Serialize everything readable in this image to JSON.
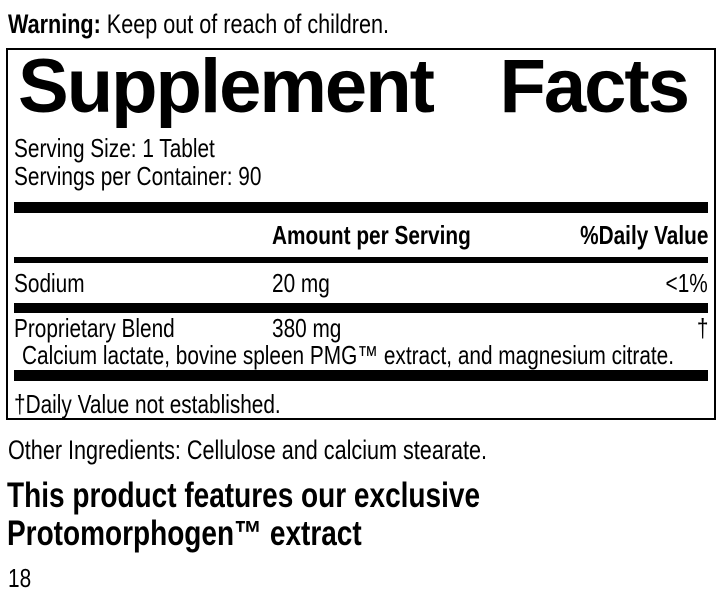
{
  "colors": {
    "text": "#000000",
    "background": "#ffffff",
    "divider": "#000000"
  },
  "warning": {
    "label": "Warning:",
    "text": "Keep out of reach of children."
  },
  "supplement_facts": {
    "title_left": "Supplement",
    "title_right": "Facts",
    "serving_size": "Serving Size: 1 Tablet",
    "servings_per_container": "Servings per Container: 90",
    "header": {
      "amount": "Amount per Serving",
      "daily_value": "%Daily Value"
    },
    "rows": [
      {
        "name": "Sodium",
        "amount": "20 mg",
        "daily_value": "<1%"
      },
      {
        "name": "Proprietary Blend",
        "amount": "380 mg",
        "daily_value": "†",
        "description": "Calcium lactate, bovine spleen PMG™ extract, and magnesium citrate."
      }
    ],
    "footnote": "†Daily Value not established."
  },
  "other_ingredients": "Other Ingredients: Cellulose and calcium stearate.",
  "feature_heading": {
    "line1": "This product features our exclusive",
    "line2": "Protomorphogen™ extract"
  },
  "page_number": "18"
}
